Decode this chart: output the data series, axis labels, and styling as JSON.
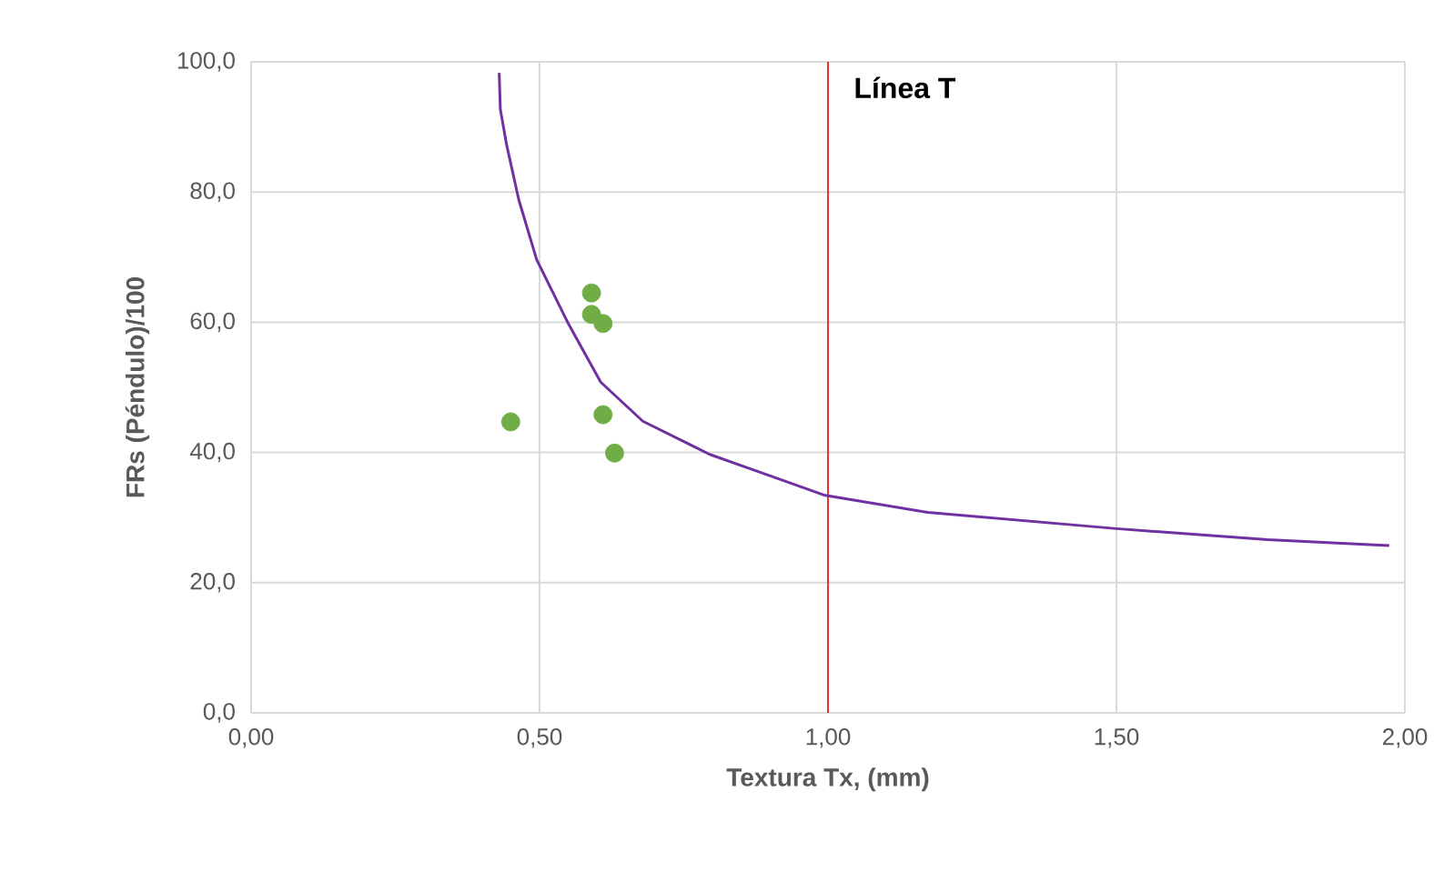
{
  "chart_data": {
    "type": "scatter",
    "xlabel": "Textura Tx, (mm)",
    "ylabel": "FRs (Péndulo)/100",
    "xlim": [
      0,
      2
    ],
    "ylim": [
      0,
      100
    ],
    "xticks": [
      {
        "value": 0,
        "label": "0,00"
      },
      {
        "value": 0.5,
        "label": "0,50"
      },
      {
        "value": 1,
        "label": "1,00"
      },
      {
        "value": 1.5,
        "label": "1,50"
      },
      {
        "value": 2,
        "label": "2,00"
      }
    ],
    "yticks": [
      {
        "value": 0,
        "label": "0,0"
      },
      {
        "value": 20,
        "label": "20,0"
      },
      {
        "value": 40,
        "label": "40,0"
      },
      {
        "value": 60,
        "label": "60,0"
      },
      {
        "value": 80,
        "label": "80,0"
      },
      {
        "value": 100,
        "label": "100,0"
      }
    ],
    "grid": true,
    "series": [
      {
        "type": "line",
        "color": "#7030a0",
        "marker": "none",
        "line_style": "solid",
        "x": [
          0.43,
          0.432,
          0.443,
          0.464,
          0.495,
          0.548,
          0.606,
          0.679,
          0.795,
          0.9,
          0.995,
          1.173,
          1.5,
          1.762,
          1.973
        ],
        "values": [
          98.3,
          92.7,
          87.2,
          78.8,
          69.6,
          60.1,
          50.8,
          44.8,
          39.7,
          36.4,
          33.4,
          30.8,
          28.3,
          26.6,
          25.7
        ]
      },
      {
        "type": "scatter",
        "color": "#70ad47",
        "marker": "circle",
        "x": [
          0.45,
          0.59,
          0.59,
          0.61,
          0.61,
          0.63
        ],
        "values": [
          44.7,
          64.5,
          61.2,
          59.8,
          45.8,
          39.9
        ]
      }
    ],
    "ref_lines": [
      {
        "axis": "x",
        "value": 1,
        "label": "Línea T",
        "color": "#e8312f"
      }
    ]
  }
}
